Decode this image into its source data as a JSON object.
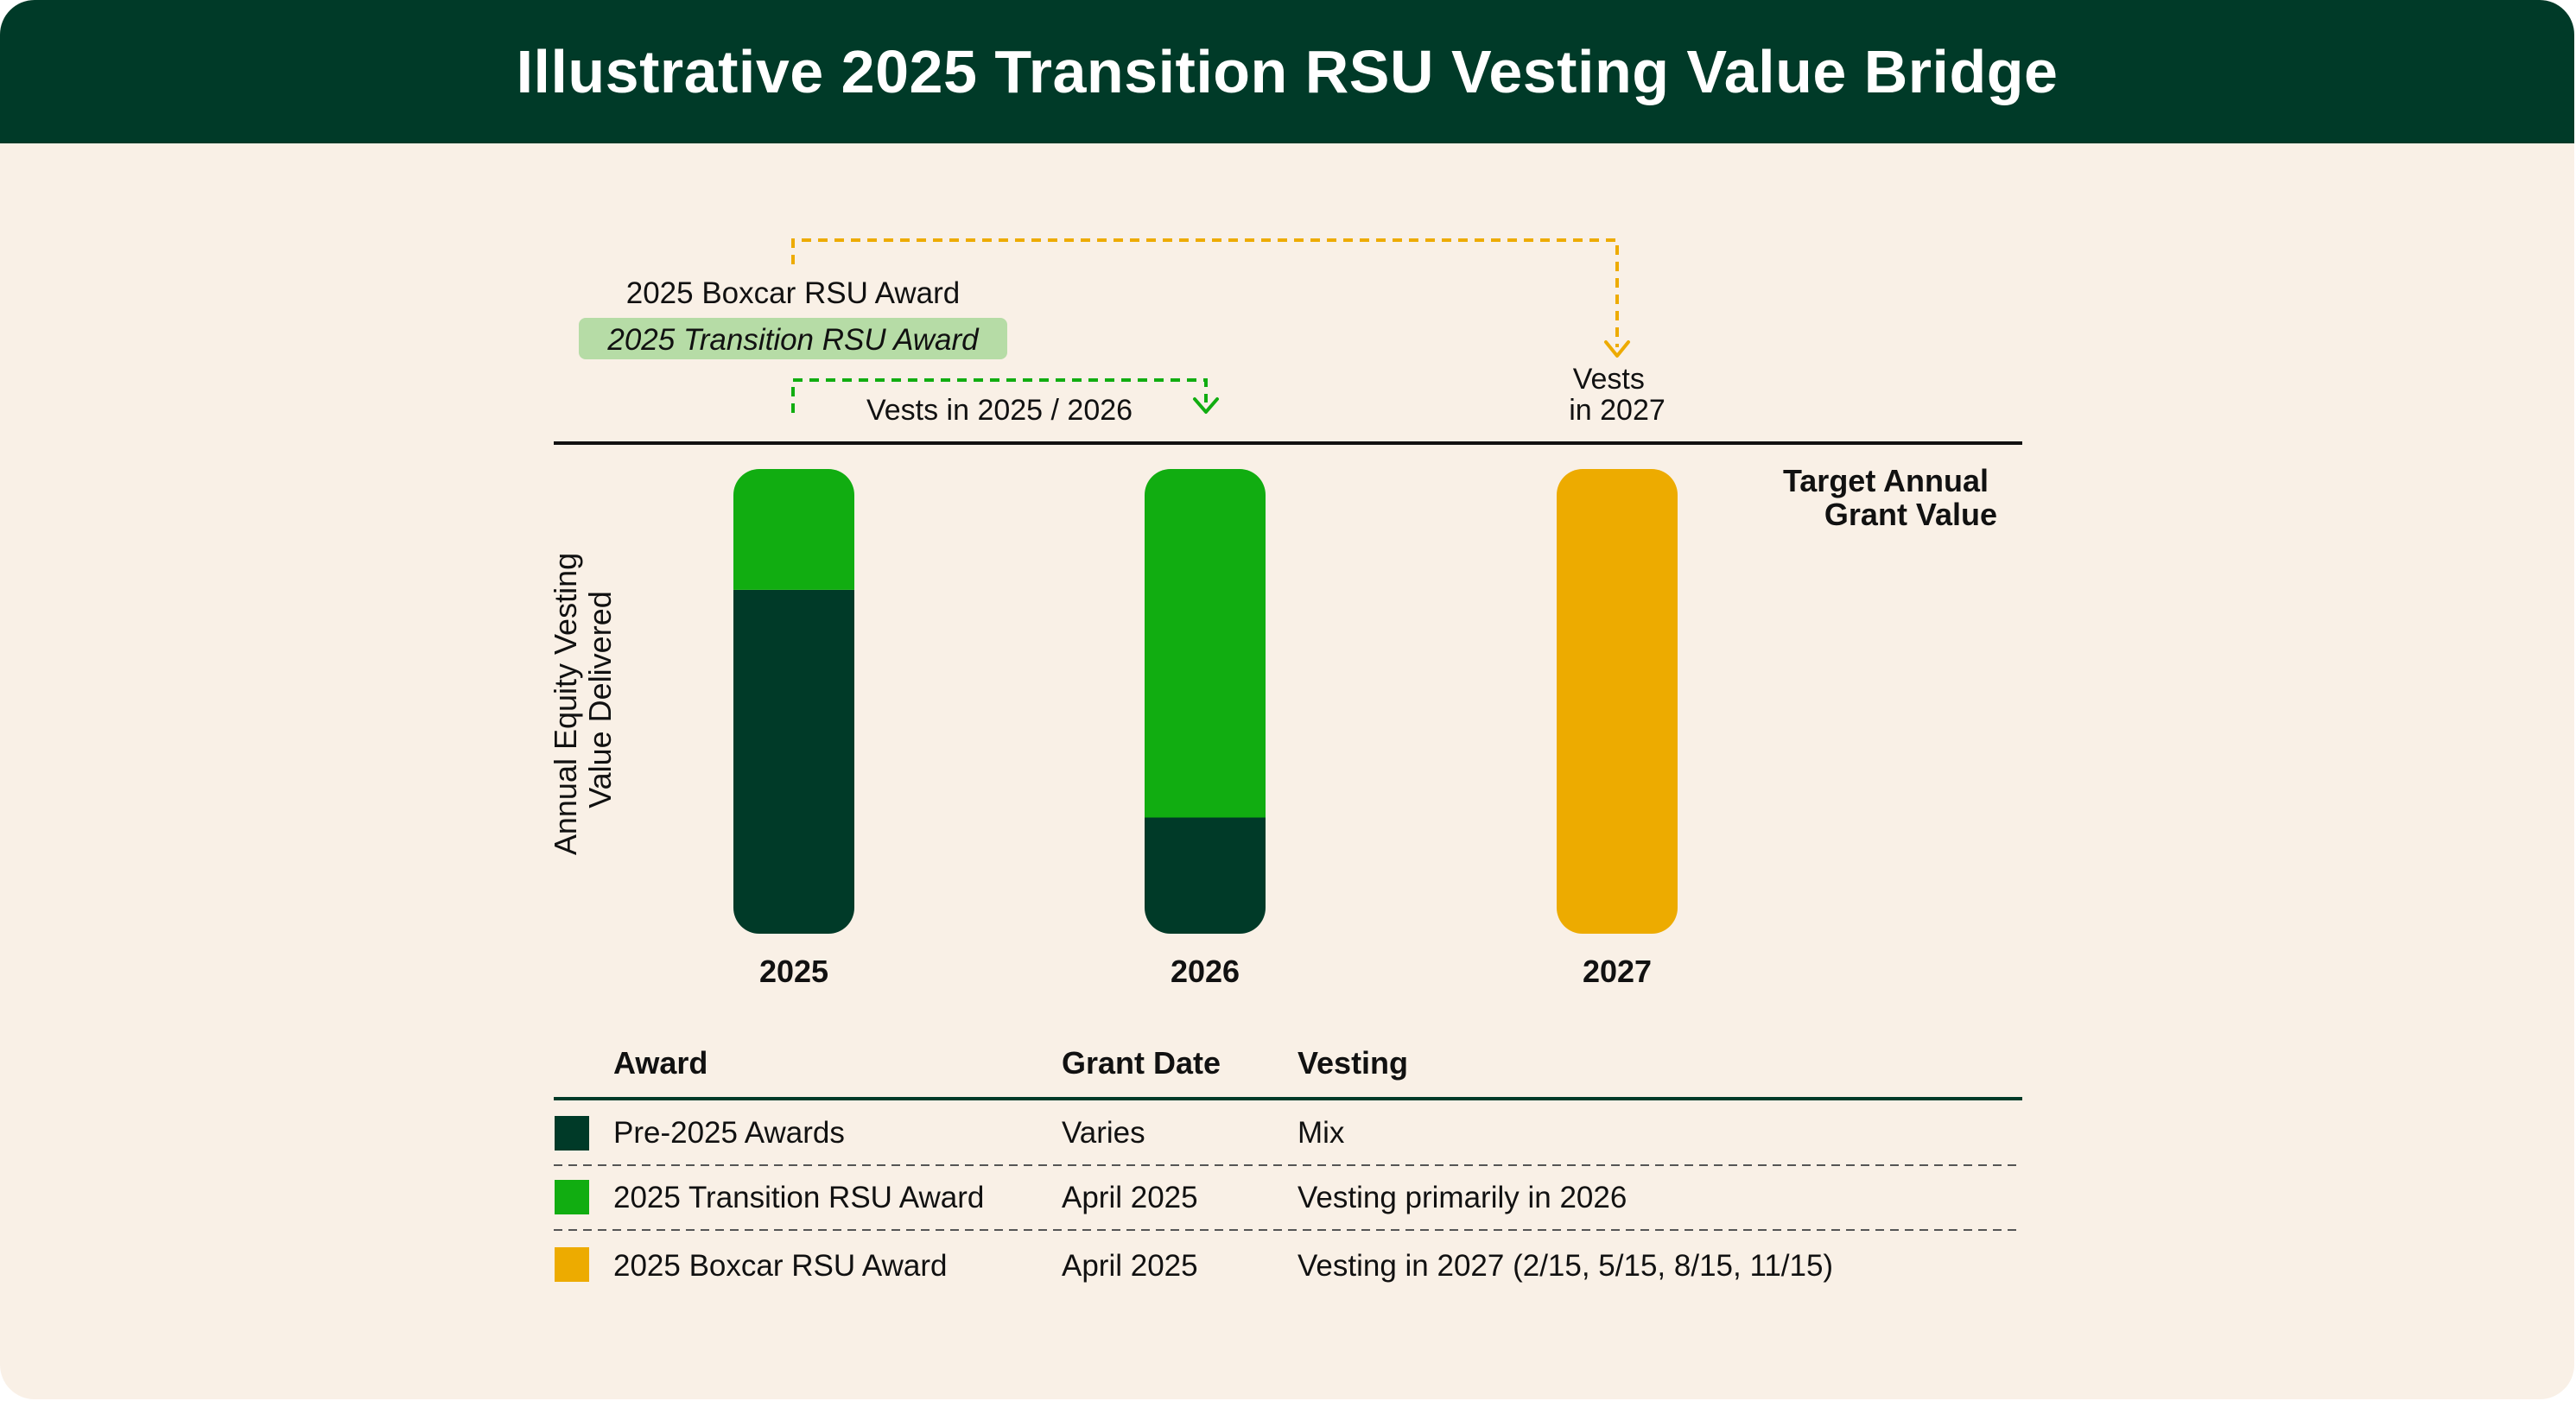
{
  "title": "Illustrative 2025 Transition RSU Vesting Value Bridge",
  "colors": {
    "pre_2025": "#003a28",
    "transition": "#11ad11",
    "boxcar": "#edab00",
    "background": "#f9f0e6",
    "header": "#003a28",
    "highlight": "#b6dca6"
  },
  "chart_data": {
    "type": "bar",
    "stacked": true,
    "categories": [
      "2025",
      "2026",
      "2027"
    ],
    "ylabel_lines": [
      "Annual Equity Vesting",
      "Value Delivered"
    ],
    "target_label_lines": [
      "Target Annual",
      "Grant Value"
    ],
    "target_value": 100,
    "ylim": [
      0,
      100
    ],
    "grid": false,
    "series": [
      {
        "name": "Pre-2025 Awards",
        "color": "#003a28",
        "values": [
          74,
          25,
          0
        ]
      },
      {
        "name": "2025 Transition RSU Award",
        "color": "#11ad11",
        "values": [
          26,
          75,
          0
        ]
      },
      {
        "name": "2025 Boxcar RSU Award",
        "color": "#edab00",
        "values": [
          0,
          0,
          100
        ]
      }
    ],
    "annotations": {
      "boxcar_label": "2025 Boxcar RSU Award",
      "transition_label": "2025 Transition RSU Award",
      "transition_vest_label": "Vests in 2025 / 2026",
      "boxcar_vest_lines": [
        "Vests",
        "in 2027"
      ]
    }
  },
  "table": {
    "headers": {
      "award": "Award",
      "grant_date": "Grant Date",
      "vesting": "Vesting"
    },
    "rows": [
      {
        "award": "Pre-2025 Awards",
        "grant_date": "Varies",
        "vesting": "Mix",
        "color": "#003a28"
      },
      {
        "award": "2025 Transition RSU Award",
        "grant_date": "April 2025",
        "vesting": "Vesting primarily in 2026",
        "color": "#11ad11"
      },
      {
        "award": "2025 Boxcar RSU Award",
        "grant_date": "April 2025",
        "vesting": "Vesting in 2027 (2/15, 5/15, 8/15, 11/15)",
        "color": "#edab00"
      }
    ]
  }
}
